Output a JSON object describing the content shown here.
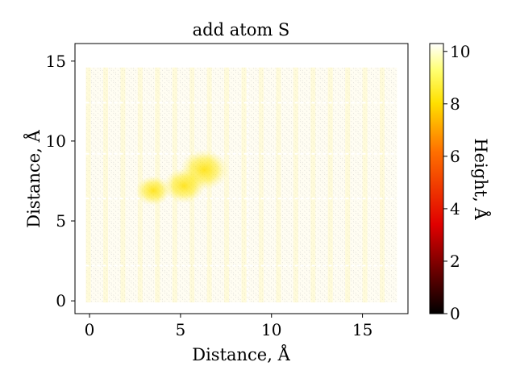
{
  "chart_data": {
    "type": "heatmap",
    "title": "add atom S",
    "xlabel": "Distance, Å",
    "ylabel": "Distance, Å",
    "xlim": [
      -0.8,
      17.5
    ],
    "ylim": [
      -0.8,
      16.1
    ],
    "xticks": [
      0,
      5,
      10,
      15
    ],
    "xtick_labels": [
      "0",
      "5",
      "10",
      "15"
    ],
    "yticks": [
      0,
      5,
      10,
      15
    ],
    "ytick_labels": [
      "0",
      "5",
      "10",
      "15"
    ],
    "data_extent": {
      "x": [
        -0.2,
        16.9
      ],
      "y": [
        -0.1,
        14.6
      ]
    },
    "grid": false,
    "colormap": "hot",
    "colorbar": {
      "label": "Height, Å",
      "range": [
        0,
        10.3
      ],
      "ticks": [
        0,
        2,
        4,
        6,
        8,
        10
      ],
      "tick_labels": [
        "0",
        "2",
        "4",
        "6",
        "8",
        "10"
      ],
      "colors": [
        "#000000",
        "#e00000",
        "#ff7000",
        "#ffe000",
        "#ffff70",
        "#ffffff"
      ]
    },
    "features": [
      {
        "kind": "peak",
        "x": 6.3,
        "y": 8.2,
        "height": 8.5
      },
      {
        "kind": "peak",
        "x": 5.2,
        "y": 7.2,
        "height": 8.0
      },
      {
        "kind": "peak",
        "x": 3.5,
        "y": 6.9,
        "height": 7.5
      }
    ]
  }
}
